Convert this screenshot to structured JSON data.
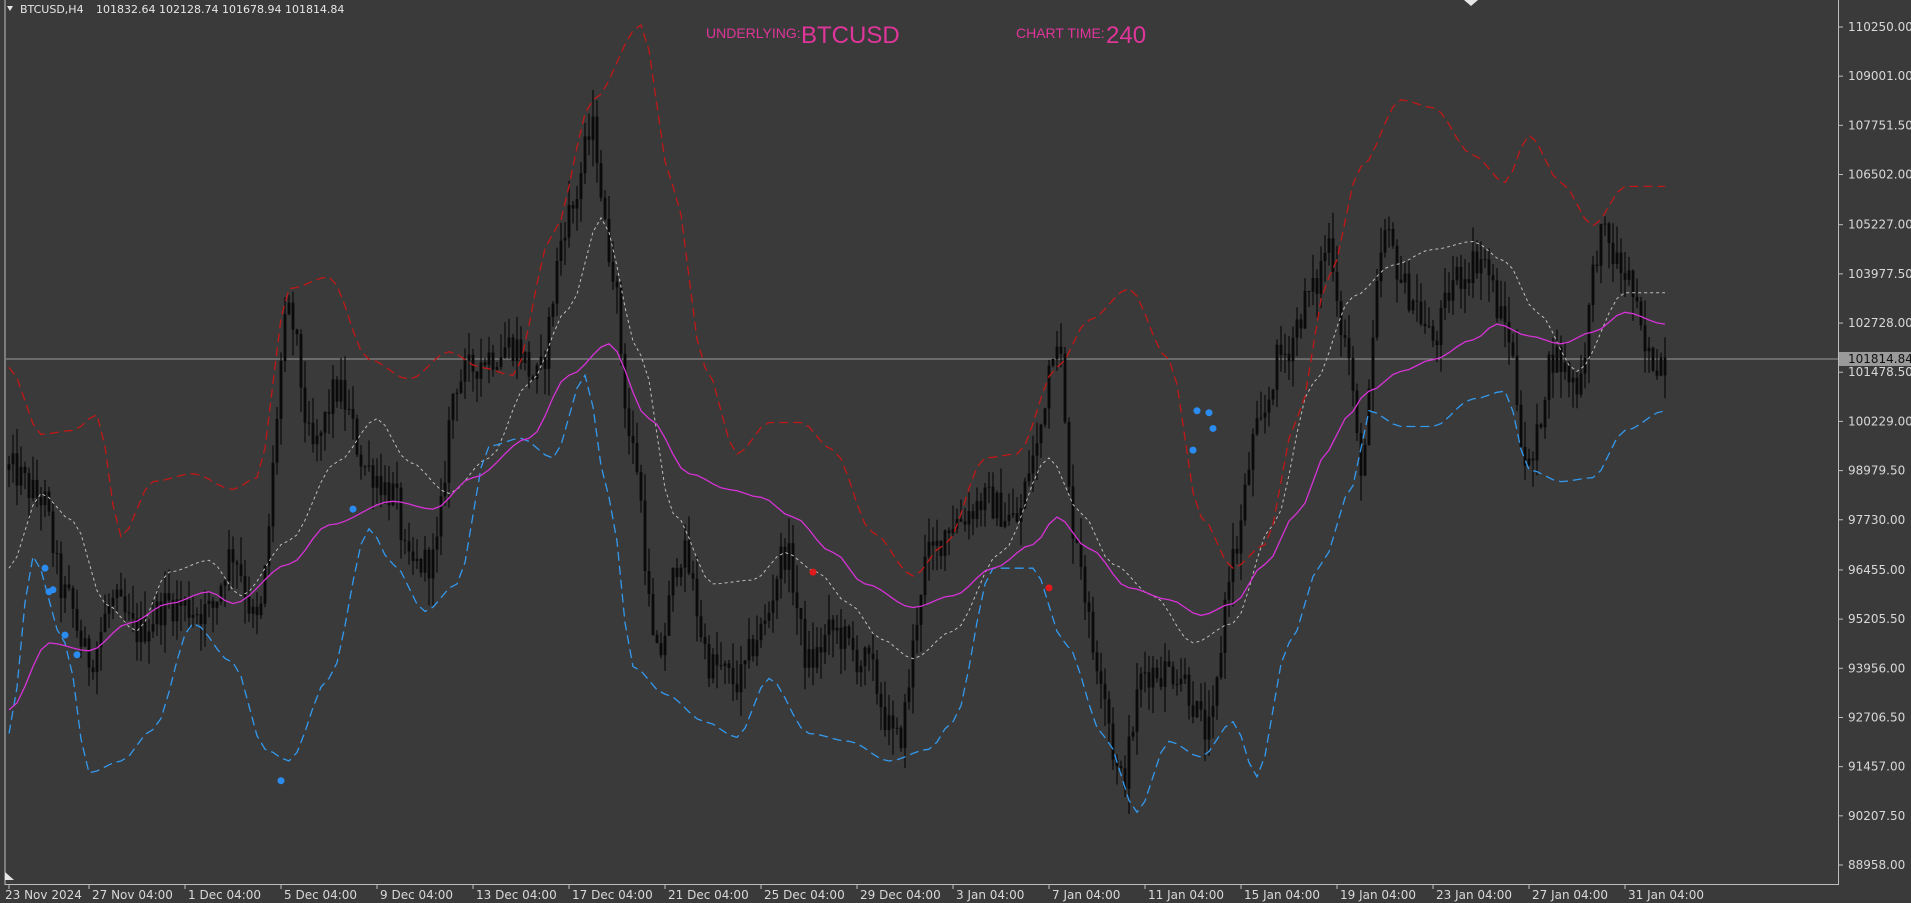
{
  "header": {
    "symbol_info": "BTCUSD,H4",
    "ohlc": "101832.64 102128.74 101678.94 101814.84",
    "underlying_label": "UNDERLYING:",
    "underlying_value": "BTCUSD",
    "chart_time_label": "CHART TIME:",
    "chart_time_value": "240"
  },
  "colors": {
    "background": "#3a3a3a",
    "candles": "#0a0a0a",
    "upper_band": "#c01818",
    "lower_band": "#3399ee",
    "ma": "#d632d6",
    "mid": "#bdbdbd",
    "header_text": "#e0359a"
  },
  "chart_data": {
    "type": "line",
    "instrument": "BTCUSD",
    "timeframe": "H4",
    "ylim": [
      88600,
      110900
    ],
    "y_ticks": [
      "110250.00",
      "109001.00",
      "107751.50",
      "106502.00",
      "105227.00",
      "103977.50",
      "102728.00",
      "101478.50",
      "100229.00",
      "98979.50",
      "97730.00",
      "96455.00",
      "95205.50",
      "93956.00",
      "92706.50",
      "91457.00",
      "90207.50",
      "88958.00"
    ],
    "y_tick_values": [
      110250.0,
      109001.0,
      107751.5,
      106502.0,
      105227.0,
      103977.5,
      102728.0,
      101478.5,
      100229.0,
      98979.5,
      97730.0,
      96455.0,
      95205.5,
      93956.0,
      92706.5,
      91457.0,
      90207.5,
      88958.0
    ],
    "x_ticks": [
      "23 Nov 2024",
      "27 Nov 04:00",
      "1 Dec 04:00",
      "5 Dec 04:00",
      "9 Dec 04:00",
      "13 Dec 04:00",
      "17 Dec 04:00",
      "21 Dec 04:00",
      "25 Dec 04:00",
      "29 Dec 04:00",
      "3 Jan 04:00",
      "7 Jan 04:00",
      "11 Jan 04:00",
      "15 Jan 04:00",
      "19 Jan 04:00",
      "23 Jan 04:00",
      "27 Jan 04:00",
      "31 Jan 04:00"
    ],
    "x_tick_index": [
      0,
      20,
      44,
      68,
      92,
      116,
      140,
      164,
      188,
      212,
      236,
      260,
      284,
      308,
      332,
      356,
      380,
      404
    ],
    "current_price": 101814.84,
    "current_price_label": "101814.84",
    "close_anchors": [
      [
        0,
        99000
      ],
      [
        8,
        98300
      ],
      [
        14,
        95800
      ],
      [
        20,
        94200
      ],
      [
        26,
        95600
      ],
      [
        32,
        94900
      ],
      [
        40,
        95600
      ],
      [
        50,
        95400
      ],
      [
        56,
        96900
      ],
      [
        62,
        95100
      ],
      [
        70,
        102900
      ],
      [
        76,
        99500
      ],
      [
        82,
        101000
      ],
      [
        90,
        99000
      ],
      [
        96,
        98400
      ],
      [
        100,
        96500
      ],
      [
        106,
        96700
      ],
      [
        112,
        101300
      ],
      [
        120,
        101900
      ],
      [
        126,
        102200
      ],
      [
        132,
        101300
      ],
      [
        140,
        105500
      ],
      [
        146,
        107600
      ],
      [
        150,
        104600
      ],
      [
        156,
        99500
      ],
      [
        162,
        94200
      ],
      [
        168,
        96900
      ],
      [
        176,
        94000
      ],
      [
        182,
        93600
      ],
      [
        188,
        94900
      ],
      [
        194,
        96900
      ],
      [
        200,
        94100
      ],
      [
        206,
        94900
      ],
      [
        214,
        94100
      ],
      [
        222,
        92100
      ],
      [
        230,
        96800
      ],
      [
        236,
        97700
      ],
      [
        244,
        98200
      ],
      [
        252,
        97700
      ],
      [
        256,
        99300
      ],
      [
        262,
        102500
      ],
      [
        266,
        97600
      ],
      [
        272,
        94200
      ],
      [
        278,
        91100
      ],
      [
        284,
        93900
      ],
      [
        292,
        93900
      ],
      [
        300,
        92300
      ],
      [
        306,
        96800
      ],
      [
        312,
        99900
      ],
      [
        318,
        101900
      ],
      [
        326,
        103500
      ],
      [
        330,
        104800
      ],
      [
        334,
        102300
      ],
      [
        338,
        99200
      ],
      [
        344,
        104900
      ],
      [
        350,
        103500
      ],
      [
        356,
        102300
      ],
      [
        362,
        103900
      ],
      [
        368,
        104400
      ],
      [
        374,
        102700
      ],
      [
        380,
        99000
      ],
      [
        386,
        101900
      ],
      [
        392,
        101200
      ],
      [
        398,
        104900
      ],
      [
        404,
        104000
      ],
      [
        410,
        101800
      ],
      [
        414,
        101814.84
      ]
    ],
    "ma_anchors": [
      [
        0,
        92900
      ],
      [
        10,
        94600
      ],
      [
        20,
        94400
      ],
      [
        30,
        95100
      ],
      [
        40,
        95600
      ],
      [
        50,
        95900
      ],
      [
        56,
        95600
      ],
      [
        70,
        96600
      ],
      [
        80,
        97600
      ],
      [
        96,
        98200
      ],
      [
        106,
        98000
      ],
      [
        116,
        98800
      ],
      [
        130,
        99800
      ],
      [
        140,
        101400
      ],
      [
        150,
        102200
      ],
      [
        160,
        100300
      ],
      [
        170,
        98900
      ],
      [
        180,
        98500
      ],
      [
        188,
        98300
      ],
      [
        196,
        97800
      ],
      [
        206,
        96900
      ],
      [
        214,
        96100
      ],
      [
        226,
        95500
      ],
      [
        236,
        95800
      ],
      [
        246,
        96500
      ],
      [
        256,
        97100
      ],
      [
        262,
        97800
      ],
      [
        270,
        97000
      ],
      [
        280,
        96000
      ],
      [
        290,
        95700
      ],
      [
        298,
        95300
      ],
      [
        306,
        95600
      ],
      [
        314,
        96600
      ],
      [
        322,
        97900
      ],
      [
        330,
        99500
      ],
      [
        334,
        100300
      ],
      [
        340,
        101000
      ],
      [
        348,
        101500
      ],
      [
        356,
        101800
      ],
      [
        366,
        102300
      ],
      [
        372,
        102700
      ],
      [
        380,
        102400
      ],
      [
        388,
        102200
      ],
      [
        396,
        102500
      ],
      [
        404,
        103000
      ],
      [
        414,
        102700
      ]
    ],
    "mid_anchors": [
      [
        0,
        96500
      ],
      [
        8,
        98400
      ],
      [
        16,
        97700
      ],
      [
        24,
        95600
      ],
      [
        32,
        94900
      ],
      [
        40,
        96400
      ],
      [
        50,
        96700
      ],
      [
        58,
        95800
      ],
      [
        70,
        97200
      ],
      [
        82,
        99200
      ],
      [
        92,
        100300
      ],
      [
        100,
        99200
      ],
      [
        110,
        98400
      ],
      [
        120,
        99300
      ],
      [
        130,
        101200
      ],
      [
        140,
        103100
      ],
      [
        148,
        105400
      ],
      [
        158,
        101900
      ],
      [
        166,
        97900
      ],
      [
        176,
        96100
      ],
      [
        186,
        96200
      ],
      [
        194,
        96900
      ],
      [
        202,
        96400
      ],
      [
        210,
        95600
      ],
      [
        218,
        94700
      ],
      [
        226,
        94200
      ],
      [
        236,
        94900
      ],
      [
        248,
        96900
      ],
      [
        260,
        99300
      ],
      [
        268,
        97900
      ],
      [
        276,
        96600
      ],
      [
        286,
        95800
      ],
      [
        296,
        94600
      ],
      [
        306,
        95100
      ],
      [
        316,
        97600
      ],
      [
        326,
        101200
      ],
      [
        336,
        103400
      ],
      [
        346,
        104200
      ],
      [
        356,
        104600
      ],
      [
        366,
        104800
      ],
      [
        374,
        104300
      ],
      [
        382,
        103000
      ],
      [
        392,
        101500
      ],
      [
        404,
        103500
      ],
      [
        414,
        103500
      ]
    ],
    "upper_anchors": [
      [
        0,
        101600
      ],
      [
        8,
        99900
      ],
      [
        16,
        100000
      ],
      [
        22,
        100400
      ],
      [
        28,
        97300
      ],
      [
        36,
        98700
      ],
      [
        46,
        98900
      ],
      [
        56,
        98500
      ],
      [
        62,
        98800
      ],
      [
        70,
        103600
      ],
      [
        80,
        103900
      ],
      [
        90,
        101800
      ],
      [
        100,
        101300
      ],
      [
        110,
        102000
      ],
      [
        118,
        101600
      ],
      [
        126,
        101400
      ],
      [
        136,
        105000
      ],
      [
        146,
        108400
      ],
      [
        158,
        110300
      ],
      [
        166,
        106200
      ],
      [
        174,
        101600
      ],
      [
        182,
        99400
      ],
      [
        190,
        100200
      ],
      [
        198,
        100200
      ],
      [
        206,
        99500
      ],
      [
        216,
        97400
      ],
      [
        226,
        96300
      ],
      [
        234,
        97100
      ],
      [
        244,
        99300
      ],
      [
        252,
        99400
      ],
      [
        262,
        101600
      ],
      [
        270,
        102800
      ],
      [
        280,
        103600
      ],
      [
        290,
        101800
      ],
      [
        298,
        97800
      ],
      [
        306,
        96500
      ],
      [
        314,
        97100
      ],
      [
        322,
        100300
      ],
      [
        330,
        103900
      ],
      [
        338,
        106700
      ],
      [
        348,
        108400
      ],
      [
        356,
        108200
      ],
      [
        366,
        107000
      ],
      [
        374,
        106300
      ],
      [
        380,
        107500
      ],
      [
        388,
        106300
      ],
      [
        396,
        105200
      ],
      [
        404,
        106200
      ],
      [
        414,
        106200
      ]
    ],
    "lower_anchors": [
      [
        0,
        92300
      ],
      [
        6,
        96800
      ],
      [
        14,
        94600
      ],
      [
        20,
        91300
      ],
      [
        28,
        91600
      ],
      [
        36,
        92400
      ],
      [
        46,
        95100
      ],
      [
        56,
        94100
      ],
      [
        64,
        91900
      ],
      [
        70,
        91600
      ],
      [
        80,
        93700
      ],
      [
        90,
        97500
      ],
      [
        96,
        96600
      ],
      [
        104,
        95400
      ],
      [
        112,
        96100
      ],
      [
        120,
        99600
      ],
      [
        128,
        99800
      ],
      [
        136,
        99300
      ],
      [
        144,
        101400
      ],
      [
        150,
        98300
      ],
      [
        156,
        94000
      ],
      [
        164,
        93300
      ],
      [
        174,
        92600
      ],
      [
        182,
        92200
      ],
      [
        190,
        93700
      ],
      [
        200,
        92300
      ],
      [
        210,
        92100
      ],
      [
        220,
        91600
      ],
      [
        230,
        91900
      ],
      [
        236,
        92600
      ],
      [
        246,
        96500
      ],
      [
        256,
        96500
      ],
      [
        264,
        94600
      ],
      [
        274,
        92200
      ],
      [
        282,
        90300
      ],
      [
        290,
        92100
      ],
      [
        298,
        91700
      ],
      [
        306,
        92600
      ],
      [
        312,
        91200
      ],
      [
        320,
        94600
      ],
      [
        328,
        96600
      ],
      [
        336,
        98600
      ],
      [
        340,
        100500
      ],
      [
        348,
        100100
      ],
      [
        356,
        100100
      ],
      [
        366,
        100800
      ],
      [
        374,
        101000
      ],
      [
        380,
        99000
      ],
      [
        388,
        98700
      ],
      [
        396,
        98800
      ],
      [
        404,
        100000
      ],
      [
        414,
        100500
      ]
    ],
    "signal_dots": [
      {
        "i": 9,
        "price": 96500,
        "color": "blue"
      },
      {
        "i": 10,
        "price": 95900,
        "color": "blue"
      },
      {
        "i": 11,
        "price": 95950,
        "color": "blue"
      },
      {
        "i": 14,
        "price": 94800,
        "color": "blue"
      },
      {
        "i": 17,
        "price": 94300,
        "color": "blue"
      },
      {
        "i": 68,
        "price": 91100,
        "color": "blue"
      },
      {
        "i": 86,
        "price": 98000,
        "color": "blue"
      },
      {
        "i": 201,
        "price": 96400,
        "color": "red"
      },
      {
        "i": 260,
        "price": 96000,
        "color": "red"
      },
      {
        "i": 296,
        "price": 99500,
        "color": "blue"
      },
      {
        "i": 297,
        "price": 100500,
        "color": "blue"
      },
      {
        "i": 300,
        "price": 100450,
        "color": "blue"
      },
      {
        "i": 301,
        "price": 100050,
        "color": "blue"
      }
    ]
  }
}
